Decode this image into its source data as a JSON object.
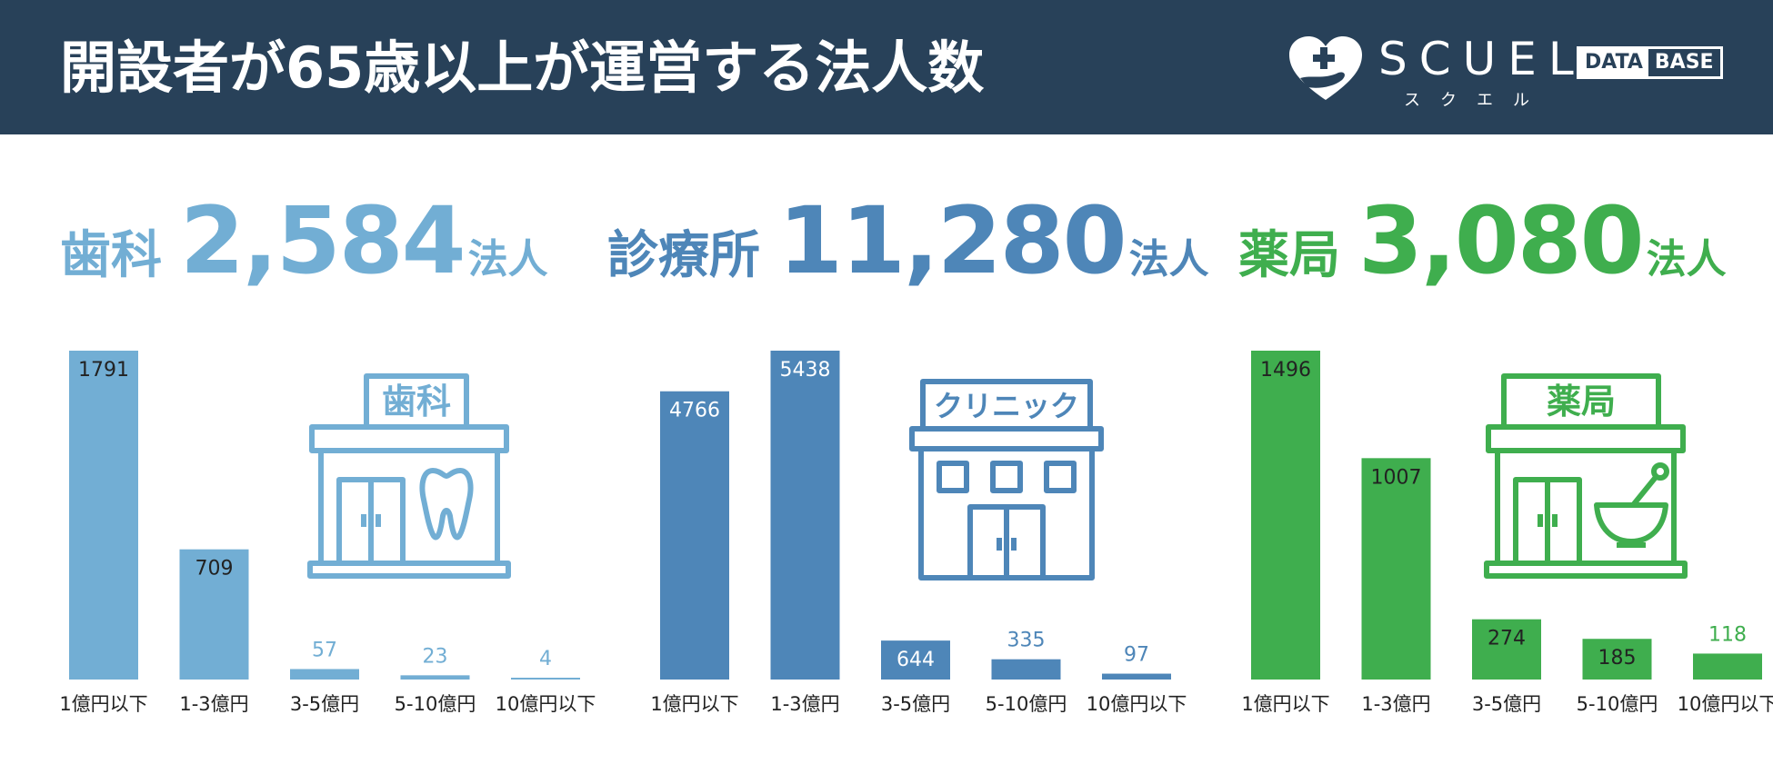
{
  "header": {
    "title": "開設者が65歳以上が運営する法人数",
    "brand_name": "SCUEL",
    "brand_kana": "スクエル",
    "brand_tag_a": "DATA",
    "brand_tag_b": "BASE"
  },
  "unit": "法人",
  "colors": {
    "header_bg": "#284159",
    "dental": "#72AED4",
    "clinic": "#4E86B8",
    "pharmacy": "#3FAE4E",
    "axis_text": "#222222"
  },
  "panels": [
    {
      "name": "歯科",
      "total": "2,584",
      "unit": "法人",
      "sign": "歯科",
      "icon": "dental-clinic-building-icon"
    },
    {
      "name": "診療所",
      "total": "11,280",
      "unit": "法人",
      "sign": "クリニック",
      "icon": "clinic-building-icon"
    },
    {
      "name": "薬局",
      "total": "3,080",
      "unit": "法人",
      "sign": "薬局",
      "icon": "pharmacy-building-icon"
    }
  ],
  "chart_data": [
    {
      "type": "bar",
      "title": "歯科",
      "categories": [
        "1億円以下",
        "1-3億円",
        "3-5億円",
        "5-10億円",
        "10億円以下"
      ],
      "values": [
        1791,
        709,
        57,
        23,
        4
      ],
      "color": "#72AED4"
    },
    {
      "type": "bar",
      "title": "診療所",
      "categories": [
        "1億円以下",
        "1-3億円",
        "3-5億円",
        "5-10億円",
        "10億円以下"
      ],
      "values": [
        4766,
        5438,
        644,
        335,
        97
      ],
      "color": "#4E86B8"
    },
    {
      "type": "bar",
      "title": "薬局",
      "categories": [
        "1億円以下",
        "1-3億円",
        "3-5億円",
        "5-10億円",
        "10億円以下"
      ],
      "values": [
        1496,
        1007,
        274,
        185,
        118
      ],
      "color": "#3FAE4E"
    }
  ]
}
